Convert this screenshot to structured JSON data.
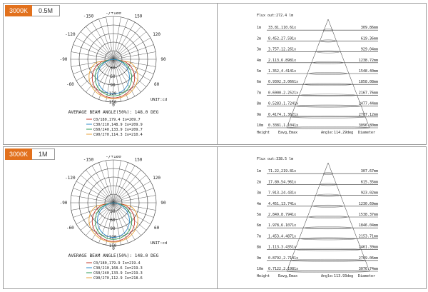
{
  "panels": [
    {
      "label_cct": "3000K",
      "label_dist": "0.5M"
    },
    {
      "label_cct": "3000K",
      "label_dist": "1M"
    }
  ],
  "colors": {
    "tag_bg": "#e2711d",
    "c0": "#c0392b",
    "c90": "#2e8bc9",
    "c180": "#2e9b57",
    "c270": "#e8a23a"
  },
  "chart_data": [
    {
      "type": "polar",
      "angle_labels": [
        "-/+180",
        "-150",
        "150",
        "-120",
        "120",
        "-90",
        "90",
        "-60",
        "60"
      ],
      "radial_ticks": [
        30,
        60,
        90,
        120,
        150
      ],
      "unit": "UNIT:cd",
      "annotation": "AVERAGE BEAM ANGLE(50%): 148.0 DEG",
      "legend": [
        "C0/180,179.4  Io=209.7",
        "C30/210,148.9  Io=209.9",
        "C60/240,133.9  Io=209.7",
        "C90/270,114.3  Io=210.4"
      ],
      "series_max": [
        150,
        150,
        150,
        150
      ]
    },
    {
      "type": "table",
      "title": "Flux out:272.4 lm",
      "rows": [
        {
          "h": "1m",
          "lux": "33.81,110.61x",
          "dia": "309.86mm"
        },
        {
          "h": "2m",
          "lux": "8.452,27.591x",
          "dia": "619.36mm"
        },
        {
          "h": "3m",
          "lux": "3.757,12.261x",
          "dia": "929.04mm"
        },
        {
          "h": "4m",
          "lux": "2.113,6.8981x",
          "dia": "1238.72mm"
        },
        {
          "h": "5m",
          "lux": "1.352,4.4141x",
          "dia": "1548.40mm"
        },
        {
          "h": "6m",
          "lux": "0.9392,3.0661x",
          "dia": "1858.08mm"
        },
        {
          "h": "7m",
          "lux": "0.6900,2.2521x",
          "dia": "2167.76mm"
        },
        {
          "h": "8m",
          "lux": "0.5283,1.7241x",
          "dia": "2477.44mm"
        },
        {
          "h": "9m",
          "lux": "0.4174,1.3621x",
          "dia": "2787.12mm"
        },
        {
          "h": "10m",
          "lux": "0.3381,1.1041x",
          "dia": "3096.80mm"
        }
      ],
      "footer": {
        "height": "Height",
        "lux": "Eavg,Emax",
        "angle": "Angle:114.29deg",
        "dia": "Diameter"
      }
    },
    {
      "type": "polar",
      "angle_labels": [
        "-/+180",
        "-150",
        "150",
        "-120",
        "120",
        "-90",
        "90",
        "-60",
        "60"
      ],
      "radial_ticks": [
        30,
        60,
        90,
        120,
        150
      ],
      "unit": "UNIT:cd",
      "annotation": "AVERAGE BEAM ANGLE(50%): 148.0 DEG",
      "legend": [
        "C0/180,179.9  Io=219.4",
        "C30/210,168.6  Io=219.3",
        "C60/240,133.9  Io=219.3",
        "C90/270,112.9  Io=218.6"
      ],
      "series_max": [
        150,
        150,
        150,
        150
      ]
    },
    {
      "type": "table",
      "title": "Flux out:338.5 lm",
      "rows": [
        {
          "h": "1m",
          "lux": "71.22,219.81x",
          "dia": "307.67mm"
        },
        {
          "h": "2m",
          "lux": "17.80,54.961x",
          "dia": "615.35mm"
        },
        {
          "h": "3m",
          "lux": "7.913,24.431x",
          "dia": "923.02mm"
        },
        {
          "h": "4m",
          "lux": "4.451,13.741x",
          "dia": "1230.69mm"
        },
        {
          "h": "5m",
          "lux": "2.849,8.7941x",
          "dia": "1538.37mm"
        },
        {
          "h": "6m",
          "lux": "1.978,6.1071x",
          "dia": "1846.04mm"
        },
        {
          "h": "7m",
          "lux": "1.453,4.4871x",
          "dia": "2153.71mm"
        },
        {
          "h": "8m",
          "lux": "1.113,3.4351x",
          "dia": "2461.39mm"
        },
        {
          "h": "9m",
          "lux": "0.8792,2.7141x",
          "dia": "2769.06mm"
        },
        {
          "h": "10m",
          "lux": "0.7122,2.1981x",
          "dia": "3076.74mm"
        }
      ],
      "footer": {
        "height": "Height",
        "lux": "Eavg,Emax",
        "angle": "Angle:113.93deg",
        "dia": "Diameter"
      }
    }
  ]
}
